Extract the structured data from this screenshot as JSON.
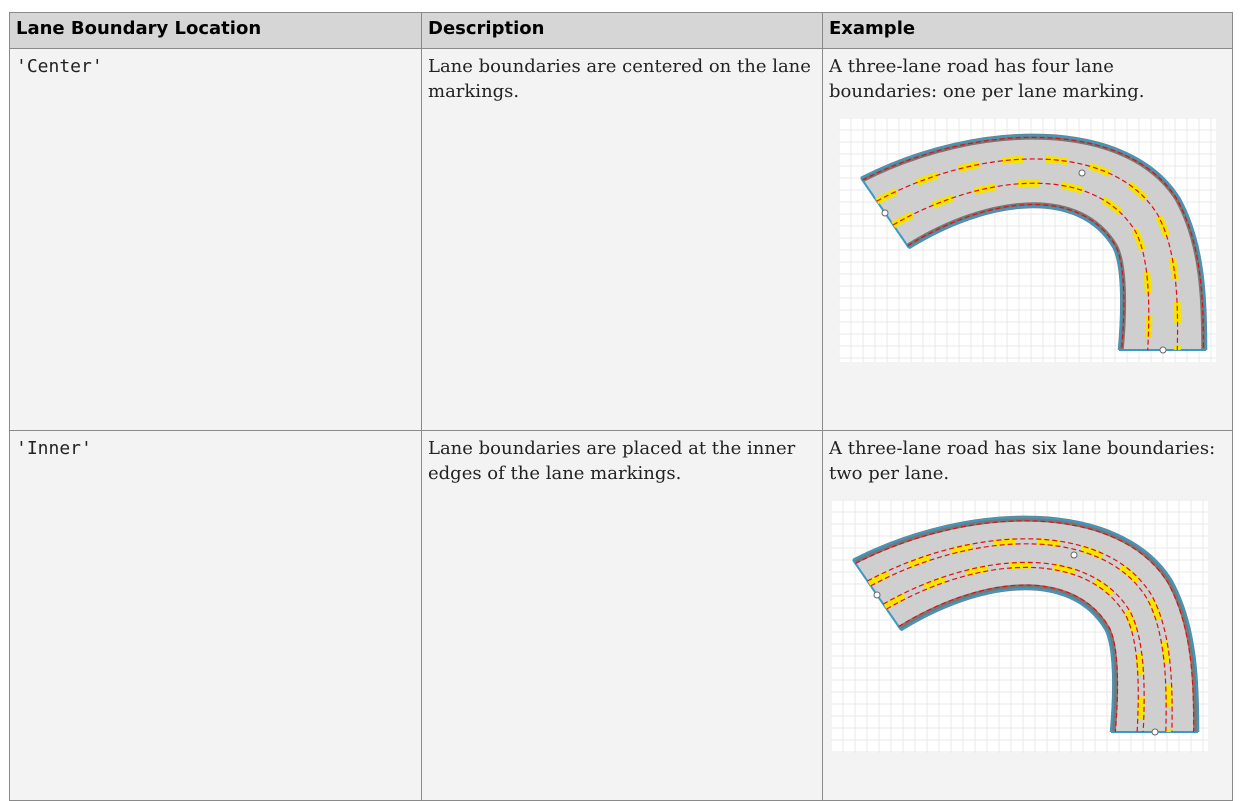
{
  "table": {
    "headers": [
      "Lane Boundary Location",
      "Description",
      "Example"
    ],
    "rows": [
      [
        "'Center'",
        "Lane boundaries are centered on the lane markings.",
        "A three-lane road has four lane boundaries: one per lane marking."
      ],
      [
        "'Inner'",
        "Lane boundaries are placed at the inner edges of the lane markings.",
        "A three-lane road has six lane boundaries: two per lane."
      ]
    ]
  }
}
